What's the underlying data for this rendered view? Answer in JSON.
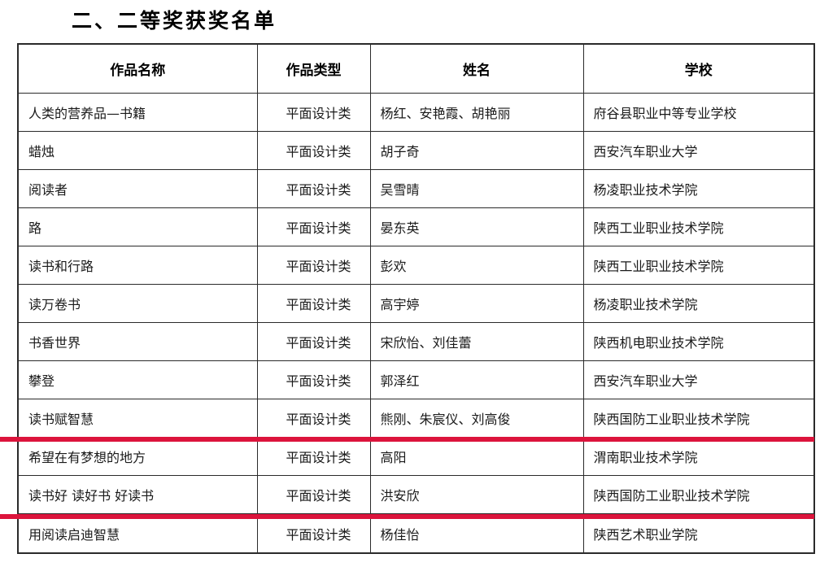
{
  "page": {
    "title": "二、二等奖获奖名单"
  },
  "table": {
    "headers": [
      "作品名称",
      "作品类型",
      "姓名",
      "学校"
    ],
    "rows": [
      {
        "work": "人类的营养品—书籍",
        "type": "平面设计类",
        "names": "杨红、安艳霞、胡艳丽",
        "school": "府谷县职业中等专业学校"
      },
      {
        "work": "蜡烛",
        "type": "平面设计类",
        "names": "胡子奇",
        "school": "西安汽车职业大学"
      },
      {
        "work": "阅读者",
        "type": "平面设计类",
        "names": "吴雪晴",
        "school": "杨凌职业技术学院"
      },
      {
        "work": "路",
        "type": "平面设计类",
        "names": "晏东英",
        "school": "陕西工业职业技术学院"
      },
      {
        "work": "读书和行路",
        "type": "平面设计类",
        "names": "彭欢",
        "school": "陕西工业职业技术学院"
      },
      {
        "work": "读万卷书",
        "type": "平面设计类",
        "names": "高宇婷",
        "school": "杨凌职业技术学院"
      },
      {
        "work": "书香世界",
        "type": "平面设计类",
        "names": "宋欣怡、刘佳蕾",
        "school": "陕西机电职业技术学院"
      },
      {
        "work": "攀登",
        "type": "平面设计类",
        "names": "郭泽红",
        "school": "西安汽车职业大学"
      },
      {
        "work": "读书赋智慧",
        "type": "平面设计类",
        "names": "熊刚、朱宸仪、刘高俊",
        "school": "陕西国防工业职业技术学院"
      },
      {
        "work": "希望在有梦想的地方",
        "type": "平面设计类",
        "names": "高阳",
        "school": "渭南职业技术学院"
      },
      {
        "work": "读书好  读好书  好读书",
        "type": "平面设计类",
        "names": "洪安欣",
        "school": "陕西国防工业职业技术学院"
      },
      {
        "work": "用阅读启迪智慧",
        "type": "平面设计类",
        "names": "杨佳怡",
        "school": "陕西艺术职业学院"
      }
    ]
  },
  "annotations": {
    "highlight_color": "#dc143c"
  }
}
